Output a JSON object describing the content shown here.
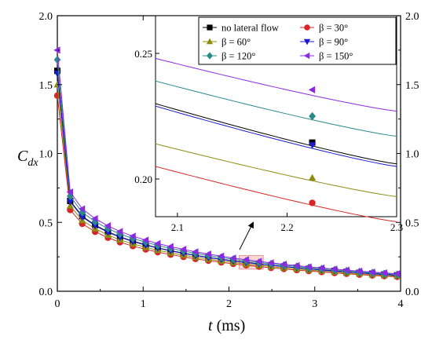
{
  "chart_data": [
    {
      "id": "main",
      "type": "line",
      "xlabel_var": "t",
      "xlabel_unit": " (ms)",
      "ylabel_var": "C",
      "ylabel_sub": "dx",
      "xlim": [
        0,
        4
      ],
      "ylim": [
        0,
        2.0
      ],
      "xticks": [
        "0",
        "1",
        "2",
        "3",
        "4"
      ],
      "yticks": [
        "0.0",
        "0.5",
        "1.0",
        "1.5",
        "2.0"
      ],
      "x": [
        0,
        0.15,
        0.29,
        0.44,
        0.59,
        0.73,
        0.88,
        1.03,
        1.17,
        1.32,
        1.47,
        1.61,
        1.76,
        1.91,
        2.05,
        2.2,
        2.35,
        2.49,
        2.64,
        2.79,
        2.93,
        3.08,
        3.23,
        3.37,
        3.52,
        3.67,
        3.81,
        3.96
      ],
      "series": [
        {
          "name": "no lateral flow",
          "marker": "square",
          "color": "#000000",
          "values": [
            1.6,
            0.655,
            0.545,
            0.48,
            0.432,
            0.395,
            0.364,
            0.338,
            0.315,
            0.295,
            0.277,
            0.261,
            0.246,
            0.233,
            0.221,
            0.21,
            0.199,
            0.189,
            0.18,
            0.171,
            0.163,
            0.155,
            0.148,
            0.141,
            0.134,
            0.128,
            0.122,
            0.116
          ]
        },
        {
          "name": "β = 30°",
          "marker": "circle",
          "color": "#d62728",
          "values": [
            1.42,
            0.59,
            0.49,
            0.432,
            0.389,
            0.356,
            0.328,
            0.304,
            0.284,
            0.266,
            0.25,
            0.235,
            0.222,
            0.21,
            0.199,
            0.189,
            0.179,
            0.17,
            0.162,
            0.154,
            0.147,
            0.14,
            0.133,
            0.127,
            0.121,
            0.115,
            0.11,
            0.105
          ]
        },
        {
          "name": "β = 60°",
          "marker": "triangle-up",
          "color": "#8c8c10",
          "values": [
            1.5,
            0.62,
            0.515,
            0.454,
            0.408,
            0.373,
            0.344,
            0.319,
            0.298,
            0.279,
            0.262,
            0.247,
            0.233,
            0.22,
            0.209,
            0.198,
            0.188,
            0.179,
            0.17,
            0.162,
            0.154,
            0.147,
            0.14,
            0.133,
            0.127,
            0.121,
            0.115,
            0.11
          ]
        },
        {
          "name": "β = 90°",
          "marker": "triangle-down",
          "color": "#1a1ad0",
          "values": [
            1.58,
            0.65,
            0.54,
            0.476,
            0.428,
            0.392,
            0.361,
            0.335,
            0.313,
            0.293,
            0.275,
            0.259,
            0.244,
            0.231,
            0.219,
            0.208,
            0.197,
            0.188,
            0.179,
            0.17,
            0.162,
            0.154,
            0.147,
            0.14,
            0.133,
            0.127,
            0.121,
            0.115
          ]
        },
        {
          "name": "β = 120°",
          "marker": "diamond",
          "color": "#2a8a8a",
          "values": [
            1.68,
            0.69,
            0.573,
            0.505,
            0.455,
            0.416,
            0.383,
            0.356,
            0.332,
            0.311,
            0.292,
            0.275,
            0.259,
            0.245,
            0.232,
            0.22,
            0.209,
            0.199,
            0.189,
            0.18,
            0.171,
            0.163,
            0.155,
            0.148,
            0.141,
            0.134,
            0.128,
            0.122
          ]
        },
        {
          "name": "β = 150°",
          "marker": "triangle-left",
          "color": "#8a2be2",
          "values": [
            1.75,
            0.72,
            0.598,
            0.527,
            0.475,
            0.434,
            0.4,
            0.371,
            0.346,
            0.324,
            0.304,
            0.286,
            0.27,
            0.255,
            0.241,
            0.229,
            0.217,
            0.206,
            0.196,
            0.186,
            0.177,
            0.169,
            0.161,
            0.153,
            0.146,
            0.139,
            0.133,
            0.127
          ]
        }
      ],
      "highlight_box": {
        "x": [
          2.12,
          2.4
        ],
        "y": [
          0.16,
          0.26
        ],
        "color": "#f4b6b6"
      }
    },
    {
      "id": "inset",
      "type": "line",
      "xlim": [
        2.08,
        2.3
      ],
      "ylim": [
        0.185,
        0.265
      ],
      "xticks": [
        {
          "v": 2.1,
          "label": "2.1"
        },
        {
          "v": 2.2,
          "label": "2.2"
        },
        {
          "v": 2.3,
          "label": "2.3"
        }
      ],
      "yticks": [
        {
          "v": 0.2,
          "label": "0.20"
        },
        {
          "v": 0.25,
          "label": "0.25"
        }
      ],
      "marker_x": 2.223,
      "series": [
        {
          "name": "no lateral flow",
          "start": 0.23,
          "end": 0.206,
          "marker_y": 0.2145
        },
        {
          "name": "β = 30°",
          "start": 0.205,
          "end": 0.183,
          "marker_y": 0.1905
        },
        {
          "name": "β = 60°",
          "start": 0.214,
          "end": 0.193,
          "marker_y": 0.2005
        },
        {
          "name": "β = 90°",
          "start": 0.229,
          "end": 0.205,
          "marker_y": 0.2135
        },
        {
          "name": "β = 120°",
          "start": 0.239,
          "end": 0.217,
          "marker_y": 0.225
        },
        {
          "name": "β = 150°",
          "start": 0.248,
          "end": 0.227,
          "marker_y": 0.2355
        }
      ]
    }
  ]
}
